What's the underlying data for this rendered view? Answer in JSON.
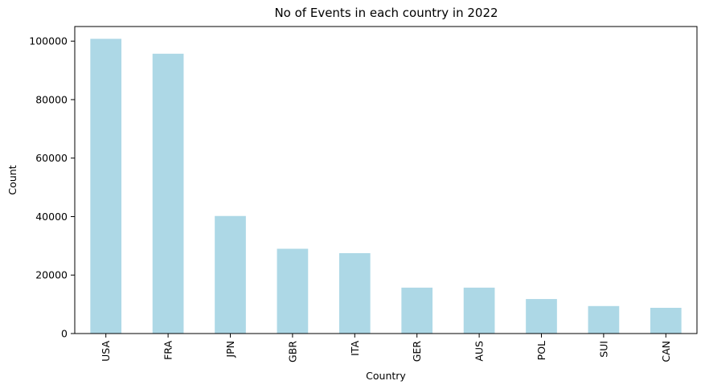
{
  "chart_data": {
    "type": "bar",
    "title": "No of Events in each country in 2022",
    "xlabel": "Country",
    "ylabel": "Count",
    "categories": [
      "USA",
      "FRA",
      "JPN",
      "GBR",
      "ITA",
      "GER",
      "AUS",
      "POL",
      "SUI",
      "CAN"
    ],
    "values": [
      100800,
      95700,
      40200,
      29000,
      27500,
      15700,
      15700,
      11800,
      9400,
      8800
    ],
    "ylim": [
      0,
      105000
    ],
    "yticks": [
      0,
      20000,
      40000,
      60000,
      80000,
      100000
    ],
    "bar_color": "#add8e6",
    "grid": false,
    "legend": "none"
  }
}
